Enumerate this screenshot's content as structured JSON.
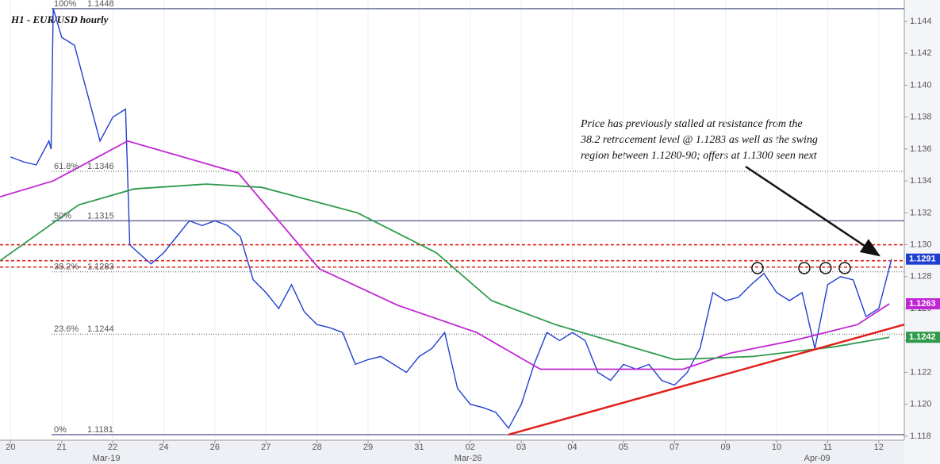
{
  "chart_data": {
    "type": "line",
    "title": "H1 - EUR/USD hourly",
    "annotation": [
      "Price has previously stalled at resistance from the",
      "38.2 retracement level @ 1.1283 as well as the swing",
      "region between 1.1280-90; offers at 1.1300 seen next"
    ],
    "xlim": [
      -5,
      420
    ],
    "ylim": [
      1.11775,
      1.14534
    ],
    "xticks": [
      {
        "value": 0,
        "label": "20"
      },
      {
        "value": 24,
        "label": "21"
      },
      {
        "value": 48,
        "label": "22"
      },
      {
        "value": 72,
        "label": "24"
      },
      {
        "value": 96,
        "label": "26"
      },
      {
        "value": 120,
        "label": "27"
      },
      {
        "value": 144,
        "label": "28"
      },
      {
        "value": 168,
        "label": "29"
      },
      {
        "value": 192,
        "label": "31"
      },
      {
        "value": 216,
        "label": "02"
      },
      {
        "value": 240,
        "label": "03"
      },
      {
        "value": 264,
        "label": "04"
      },
      {
        "value": 288,
        "label": "05"
      },
      {
        "value": 312,
        "label": "07"
      },
      {
        "value": 336,
        "label": "09"
      },
      {
        "value": 360,
        "label": "10"
      },
      {
        "value": 384,
        "label": "11"
      },
      {
        "value": 408,
        "label": "12"
      }
    ],
    "month_ticks": [
      {
        "value": 45,
        "label": "Mar-19"
      },
      {
        "value": 215,
        "label": "Mar-26"
      },
      {
        "value": 379,
        "label": "Apr-09"
      }
    ],
    "yticks": [
      1.118,
      {
        "value": 1.12,
        "label": "1.120"
      },
      1.122,
      1.124,
      1.126,
      1.128,
      {
        "value": 1.13,
        "label": "1.130"
      },
      1.132,
      1.134,
      1.136,
      1.138,
      {
        "value": 1.14,
        "label": "1.140"
      },
      1.142,
      1.144
    ],
    "series": [
      {
        "color": "#1f3fd1",
        "x": [
          0,
          6,
          12,
          18,
          19,
          20,
          24,
          30,
          36,
          42,
          48,
          54,
          56,
          60,
          66,
          72,
          78,
          84,
          90,
          96,
          102,
          108,
          114,
          120,
          126,
          132,
          138,
          144,
          150,
          156,
          162,
          168,
          174,
          180,
          186,
          192,
          198,
          204,
          210,
          216,
          222,
          228,
          234,
          240,
          246,
          252,
          258,
          264,
          270,
          276,
          282,
          288,
          294,
          300,
          306,
          312,
          318,
          324,
          330,
          336,
          342,
          348,
          354,
          360,
          366,
          372,
          378,
          384,
          390,
          396,
          402,
          408,
          414
        ],
        "values": [
          1.1355,
          1.1352,
          1.135,
          1.1365,
          1.136,
          1.1448,
          1.143,
          1.1425,
          1.1395,
          1.1365,
          1.138,
          1.1385,
          1.13,
          1.1295,
          1.1288,
          1.1295,
          1.1305,
          1.1315,
          1.1312,
          1.1315,
          1.1312,
          1.1305,
          1.1278,
          1.127,
          1.126,
          1.1275,
          1.1258,
          1.125,
          1.1248,
          1.1245,
          1.1225,
          1.1228,
          1.123,
          1.1225,
          1.122,
          1.123,
          1.1235,
          1.1245,
          1.121,
          1.12,
          1.1198,
          1.1195,
          1.1185,
          1.12,
          1.1225,
          1.1245,
          1.124,
          1.1245,
          1.124,
          1.122,
          1.1215,
          1.1225,
          1.1222,
          1.1225,
          1.1215,
          1.1212,
          1.122,
          1.1235,
          1.127,
          1.1265,
          1.1267,
          1.1275,
          1.1282,
          1.127,
          1.1265,
          1.127,
          1.1235,
          1.1275,
          1.128,
          1.1278,
          1.1255,
          1.126,
          1.1291
        ]
      },
      {
        "color": "#c026d3",
        "x": [
          -5,
          20,
          55,
          107,
          145,
          182,
          219,
          249,
          294,
          316,
          338,
          368,
          398,
          413
        ],
        "values": [
          1.133,
          1.134,
          1.1365,
          1.1345,
          1.1285,
          1.1262,
          1.1245,
          1.1222,
          1.1222,
          1.1222,
          1.1232,
          1.124,
          1.125,
          1.1263
        ]
      },
      {
        "color": "#2e9a4a",
        "x": [
          -5,
          32,
          58,
          92,
          118,
          163,
          200,
          226,
          256,
          294,
          312,
          349,
          387,
          413
        ],
        "values": [
          1.129,
          1.1325,
          1.1335,
          1.1338,
          1.1336,
          1.132,
          1.1295,
          1.1265,
          1.125,
          1.1235,
          1.1228,
          1.123,
          1.1236,
          1.1242
        ]
      }
    ],
    "price_tags": [
      1.1291,
      1.1263,
      1.1242
    ],
    "fib_levels": [
      {
        "label": "100%",
        "value": 1.1448
      },
      {
        "label": "61.8%",
        "value": 1.1346
      },
      {
        "label": "50%",
        "value": 1.1315
      },
      {
        "label": "38.2%",
        "value": 1.1283
      },
      {
        "label": "23.6%",
        "value": 1.1244
      },
      {
        "label": "0%",
        "value": 1.1181
      }
    ],
    "resistance_lines": [
      1.13,
      1.129,
      1.1286
    ],
    "trendline": {
      "color": "#e0201b",
      "x": [
        234,
        420
      ],
      "values": [
        1.1181,
        1.125
      ]
    },
    "swing_highs": {
      "x": [
        351,
        373,
        383,
        392
      ],
      "values": [
        1.12854,
        1.12854,
        1.12854,
        1.12854
      ]
    }
  }
}
